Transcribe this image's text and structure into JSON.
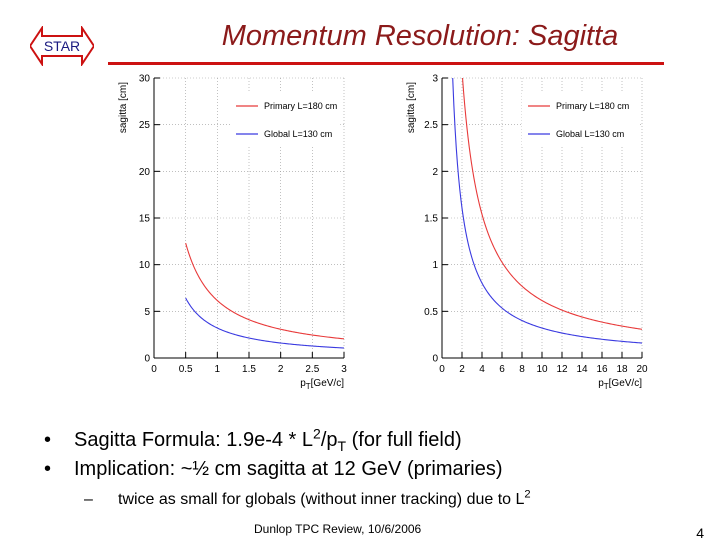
{
  "logo": {
    "text": "STAR"
  },
  "title": "Momentum Resolution: Sagitta",
  "chart_data": [
    {
      "type": "line",
      "ylabel": "sagitta [cm]",
      "xlabel": "p",
      "xlabel_sub": "T",
      "xlabel_unit": "[GeV/c]",
      "xlim": [
        0,
        3
      ],
      "ylim": [
        0,
        30
      ],
      "xticks": [
        "0",
        "0.5",
        "1",
        "1.5",
        "2",
        "2.5",
        "3"
      ],
      "xtick_values": [
        0,
        0.5,
        1,
        1.5,
        2,
        2.5,
        3
      ],
      "yticks": [
        "0",
        "5",
        "10",
        "15",
        "20",
        "25",
        "30"
      ],
      "ytick_values": [
        0,
        5,
        10,
        15,
        20,
        25,
        30
      ],
      "grid": true,
      "legend": "top-right",
      "series": [
        {
          "name": "Primary L=180 cm",
          "color": "#e83a3a",
          "coef": 6.156,
          "x": [
            0.5,
            0.6,
            0.8,
            1,
            1.25,
            1.5,
            2,
            2.5,
            3
          ],
          "values": [
            12.31,
            10.26,
            7.7,
            6.16,
            4.92,
            4.1,
            3.08,
            2.46,
            2.05
          ]
        },
        {
          "name": "Global L=130 cm",
          "color": "#3a3ae0",
          "coef": 3.211,
          "x": [
            0.5,
            0.6,
            0.8,
            1,
            1.25,
            1.5,
            2,
            2.5,
            3
          ],
          "values": [
            6.42,
            5.35,
            4.01,
            3.21,
            2.57,
            2.14,
            1.61,
            1.28,
            1.07
          ]
        }
      ]
    },
    {
      "type": "line",
      "ylabel": "sagitta [cm]",
      "xlabel": "p",
      "xlabel_sub": "T",
      "xlabel_unit": "[GeV/c]",
      "xlim": [
        0,
        20
      ],
      "ylim": [
        0,
        3
      ],
      "xticks": [
        "0",
        "2",
        "4",
        "6",
        "8",
        "10",
        "12",
        "14",
        "16",
        "18",
        "20"
      ],
      "xtick_values": [
        0,
        2,
        4,
        6,
        8,
        10,
        12,
        14,
        16,
        18,
        20
      ],
      "yticks": [
        "0",
        "0.5",
        "1",
        "1.5",
        "2",
        "2.5",
        "3"
      ],
      "ytick_values": [
        0,
        0.5,
        1,
        1.5,
        2,
        2.5,
        3
      ],
      "grid": true,
      "legend": "top-right",
      "series": [
        {
          "name": "Primary L=180 cm",
          "color": "#e83a3a",
          "coef": 6.156,
          "x": [
            2.05,
            3,
            4,
            6,
            8,
            10,
            12,
            16,
            20
          ],
          "values": [
            3.0,
            2.05,
            1.54,
            1.03,
            0.77,
            0.62,
            0.51,
            0.38,
            0.31
          ]
        },
        {
          "name": "Global L=130 cm",
          "color": "#3a3ae0",
          "coef": 3.211,
          "x": [
            1.07,
            2,
            3,
            4,
            6,
            8,
            10,
            12,
            16,
            20
          ],
          "values": [
            3.0,
            1.61,
            1.07,
            0.8,
            0.54,
            0.4,
            0.32,
            0.27,
            0.2,
            0.16
          ]
        }
      ]
    }
  ],
  "bullets": {
    "b1": {
      "prefix": "Sagitta Formula: 1.9e-4 * L",
      "sup": "2",
      "mid": "/p",
      "sub": "T",
      "suffix": " (for full field)"
    },
    "b2": "Implication: ~½ cm sagitta at 12 GeV (primaries)",
    "sub1": {
      "text": "twice as small for globals (without inner tracking) due to L",
      "sup": "2"
    }
  },
  "footer": "Dunlop TPC Review, 10/6/2006",
  "page_number": "4"
}
